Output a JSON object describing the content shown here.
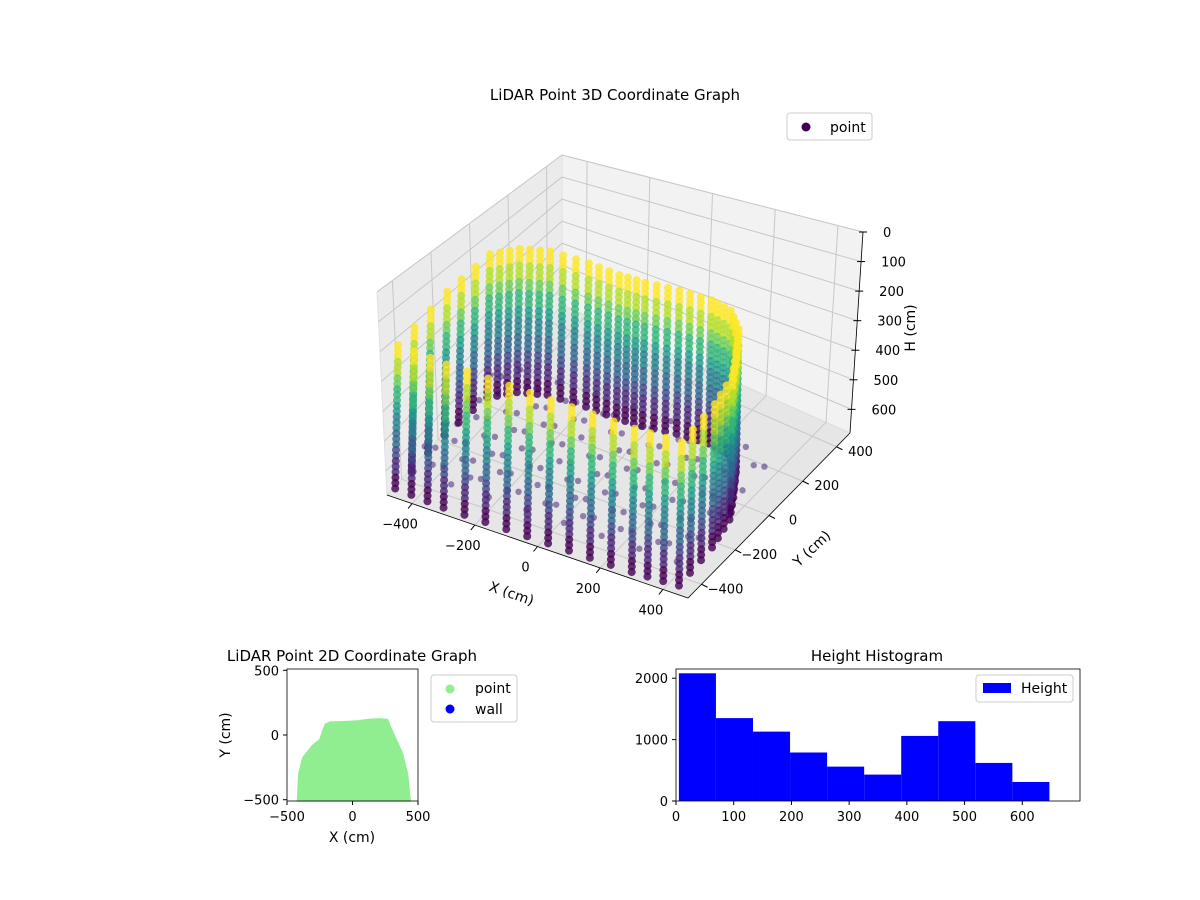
{
  "chart_data": [
    {
      "type": "scatter",
      "projection": "3d",
      "title": "LiDAR Point 3D Coordinate Graph",
      "xlabel": "X (cm)",
      "ylabel": "Y (cm)",
      "zlabel": "H (cm)",
      "xticks": [
        -400,
        -200,
        0,
        200,
        400
      ],
      "yticks": [
        -400,
        -200,
        0,
        200,
        400
      ],
      "zticks": [
        0,
        100,
        200,
        300,
        400,
        500,
        600
      ],
      "xlim": [
        -480,
        480
      ],
      "ylim": [
        -480,
        480
      ],
      "zlim": [
        0,
        680
      ],
      "z_inverted": true,
      "colormap": "viridis",
      "grid": true,
      "legend": {
        "position": "upper-right",
        "entries": [
          {
            "label": "point",
            "color": "#440154"
          }
        ]
      },
      "series": [
        {
          "name": "point",
          "description_points": "wall columns around a room outline, heights 0-650",
          "outline": [
            [
              -460,
              -470
            ],
            [
              -460,
              -200
            ],
            [
              -440,
              0
            ],
            [
              -380,
              60
            ],
            [
              -300,
              90
            ],
            [
              -180,
              95
            ],
            [
              -80,
              90
            ],
            [
              0,
              95
            ],
            [
              100,
              110
            ],
            [
              200,
              115
            ],
            [
              270,
              100
            ],
            [
              330,
              40
            ],
            [
              380,
              -60
            ],
            [
              420,
              -150
            ],
            [
              440,
              -280
            ],
            [
              445,
              -470
            ],
            [
              300,
              -480
            ],
            [
              100,
              -480
            ],
            [
              -100,
              -480
            ],
            [
              -300,
              -480
            ]
          ],
          "height_max": 650
        }
      ]
    },
    {
      "type": "scatter",
      "title": "LiDAR Point 2D Coordinate Graph",
      "xlabel": "X (cm)",
      "ylabel": "Y (cm)",
      "xticks": [
        -500,
        0,
        500
      ],
      "yticks": [
        -500,
        0,
        500
      ],
      "xlim": [
        -500,
        500
      ],
      "ylim": [
        -510,
        510
      ],
      "legend": {
        "position": "outside-right",
        "entries": [
          {
            "label": "point",
            "color": "#90ee90"
          },
          {
            "label": "wall",
            "color": "#0000ff"
          }
        ]
      },
      "series": [
        {
          "name": "point",
          "color": "#90ee90",
          "outline": [
            [
              -410,
              -500
            ],
            [
              -400,
              -300
            ],
            [
              -370,
              -180
            ],
            [
              -300,
              -90
            ],
            [
              -240,
              -40
            ],
            [
              -220,
              20
            ],
            [
              -200,
              75
            ],
            [
              -170,
              90
            ],
            [
              -100,
              92
            ],
            [
              -30,
              95
            ],
            [
              50,
              100
            ],
            [
              120,
              110
            ],
            [
              200,
              115
            ],
            [
              260,
              110
            ],
            [
              280,
              60
            ],
            [
              320,
              -30
            ],
            [
              370,
              -140
            ],
            [
              410,
              -300
            ],
            [
              430,
              -500
            ]
          ]
        },
        {
          "name": "wall",
          "color": "#0000ff",
          "points": []
        }
      ]
    },
    {
      "type": "bar",
      "histogram": true,
      "title": "Height Histogram",
      "xlabel": "",
      "ylabel": "",
      "xticks": [
        0,
        100,
        200,
        300,
        400,
        500,
        600
      ],
      "yticks": [
        0,
        1000,
        2000
      ],
      "xlim": [
        0,
        700
      ],
      "ylim": [
        0,
        2150
      ],
      "color": "#0000ff",
      "legend": {
        "position": "upper-right",
        "entries": [
          {
            "label": "Height",
            "color": "#0000ff"
          }
        ]
      },
      "bin_edges": [
        5,
        69.2,
        133.4,
        197.6,
        261.8,
        326,
        390.2,
        454.4,
        518.6,
        582.8,
        647
      ],
      "values": [
        2080,
        1350,
        1130,
        790,
        560,
        430,
        1060,
        1300,
        620,
        310
      ]
    }
  ]
}
